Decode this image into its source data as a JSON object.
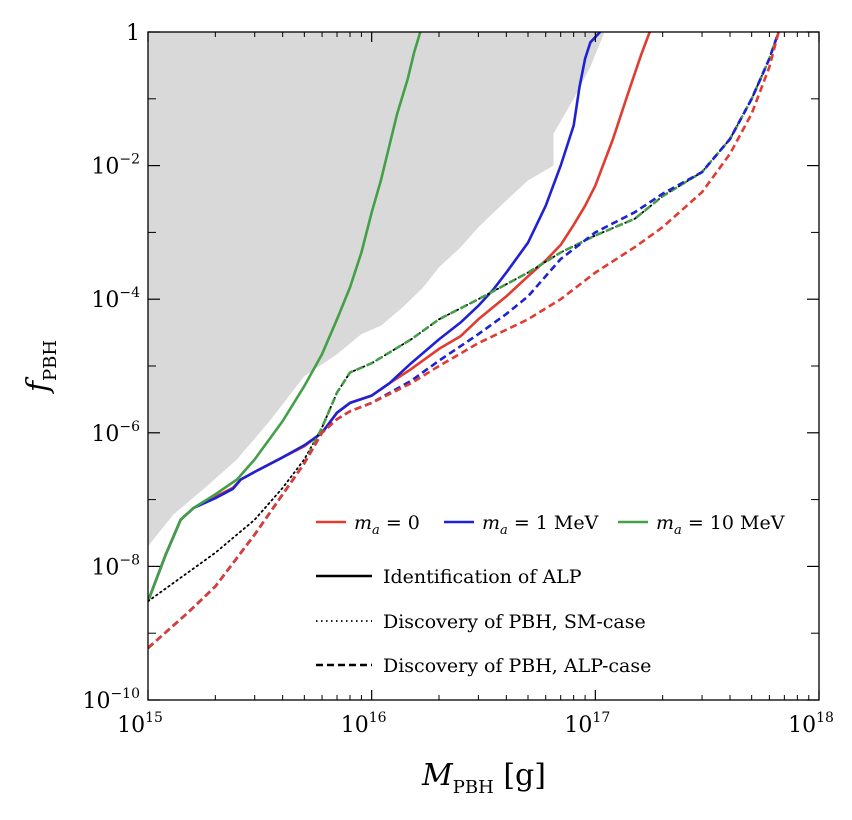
{
  "chart_data": {
    "type": "line",
    "xlabel": {
      "main": "M",
      "sub": "PBH",
      "unit": " [g]"
    },
    "ylabel": {
      "main": "f",
      "sub": "PBH"
    },
    "x_scale": "log",
    "y_scale": "log",
    "xlim": [
      1000000000000000.0,
      1e+18
    ],
    "ylim": [
      1e-10,
      1
    ],
    "x_ticks": [
      {
        "base": "10",
        "exp": "15",
        "value": 1000000000000000.0
      },
      {
        "base": "10",
        "exp": "16",
        "value": 1e+16
      },
      {
        "base": "10",
        "exp": "17",
        "value": 1e+17
      },
      {
        "base": "10",
        "exp": "18",
        "value": 1e+18
      }
    ],
    "y_ticks": [
      {
        "base": "1",
        "exp": "",
        "value": 1
      },
      {
        "base": "10",
        "exp": "−2",
        "value": 0.01
      },
      {
        "base": "10",
        "exp": "−4",
        "value": 0.0001
      },
      {
        "base": "10",
        "exp": "−6",
        "value": 1e-06
      },
      {
        "base": "10",
        "exp": "−8",
        "value": 1e-08
      },
      {
        "base": "10",
        "exp": "−10",
        "value": 1e-10
      }
    ],
    "excluded_region": {
      "color": "#d9d9d9",
      "boundary": [
        [
          1000000000000000.0,
          2e-08
        ],
        [
          1300000000000000.0,
          6e-08
        ],
        [
          1800000000000000.0,
          1.5e-07
        ],
        [
          2500000000000000.0,
          4e-07
        ],
        [
          3500000000000000.0,
          1.5e-06
        ],
        [
          5000000000000000.0,
          7e-06
        ],
        [
          7000000000000000.0,
          1.5e-05
        ],
        [
          9000000000000000.0,
          3e-05
        ],
        [
          1.1e+16,
          4e-05
        ],
        [
          1.4e+16,
          8e-05
        ],
        [
          1.7e+16,
          0.00015
        ],
        [
          2e+16,
          0.0003
        ],
        [
          2.5e+16,
          0.0006
        ],
        [
          3e+16,
          0.0012
        ],
        [
          4e+16,
          0.003
        ],
        [
          5e+16,
          0.006
        ],
        [
          6.5e+16,
          0.01
        ],
        [
          6.5e+16,
          0.03
        ],
        [
          8e+16,
          0.1
        ],
        [
          9.5e+16,
          0.3
        ],
        [
          1.1e+17,
          1
        ]
      ]
    },
    "series": [
      {
        "color": "#e03c31",
        "style": "solid",
        "points": [
          [
            1000000000000000.0,
            3e-09
          ],
          [
            1200000000000000.0,
            1.5e-08
          ],
          [
            1400000000000000.0,
            5e-08
          ],
          [
            1600000000000000.0,
            7.5e-08
          ],
          [
            2000000000000000.0,
            1.1e-07
          ],
          [
            2400000000000000.0,
            1.5e-07
          ],
          [
            2600000000000000.0,
            2e-07
          ],
          [
            3000000000000000.0,
            2.6e-07
          ],
          [
            4000000000000000.0,
            4.3e-07
          ],
          [
            5000000000000000.0,
            6.3e-07
          ],
          [
            6000000000000000.0,
            1e-06
          ],
          [
            7000000000000000.0,
            2e-06
          ],
          [
            8000000000000000.0,
            2.8e-06
          ],
          [
            1e+16,
            3.6e-06
          ],
          [
            1.2e+16,
            5.5e-06
          ],
          [
            1.5e+16,
            9e-06
          ],
          [
            2e+16,
            1.8e-05
          ],
          [
            2.5e+16,
            2.8e-05
          ],
          [
            3e+16,
            5e-05
          ],
          [
            4e+16,
            0.00011
          ],
          [
            5e+16,
            0.00022
          ],
          [
            6e+16,
            0.00038
          ],
          [
            7e+16,
            0.00065
          ],
          [
            8e+16,
            0.0013
          ],
          [
            9e+16,
            0.0025
          ],
          [
            1e+17,
            0.005
          ],
          [
            1.2e+17,
            0.025
          ],
          [
            1.4e+17,
            0.12
          ],
          [
            1.6e+17,
            0.45
          ],
          [
            1.75e+17,
            1
          ]
        ]
      },
      {
        "color": "#1f22d4",
        "style": "solid",
        "points": [
          [
            1000000000000000.0,
            3e-09
          ],
          [
            1200000000000000.0,
            1.5e-08
          ],
          [
            1400000000000000.0,
            5e-08
          ],
          [
            1600000000000000.0,
            7.5e-08
          ],
          [
            2000000000000000.0,
            1.05e-07
          ],
          [
            2400000000000000.0,
            1.45e-07
          ],
          [
            2600000000000000.0,
            2e-07
          ],
          [
            3000000000000000.0,
            2.6e-07
          ],
          [
            4000000000000000.0,
            4.3e-07
          ],
          [
            5000000000000000.0,
            6.5e-07
          ],
          [
            6000000000000000.0,
            1e-06
          ],
          [
            7000000000000000.0,
            2e-06
          ],
          [
            8000000000000000.0,
            2.8e-06
          ],
          [
            1e+16,
            3.6e-06
          ],
          [
            1.2e+16,
            5.5e-06
          ],
          [
            1.5e+16,
            1.1e-05
          ],
          [
            2e+16,
            2.5e-05
          ],
          [
            2.5e+16,
            4.5e-05
          ],
          [
            3e+16,
            8e-05
          ],
          [
            3.5e+16,
            0.00014
          ],
          [
            4e+16,
            0.00025
          ],
          [
            5e+16,
            0.0007
          ],
          [
            6e+16,
            0.0025
          ],
          [
            7e+16,
            0.01
          ],
          [
            8e+16,
            0.04
          ],
          [
            8.5e+16,
            0.15
          ],
          [
            9e+16,
            0.4
          ],
          [
            9.5e+16,
            0.7
          ],
          [
            1.05e+17,
            1
          ]
        ]
      },
      {
        "color": "#43a047",
        "style": "solid",
        "points": [
          [
            1000000000000000.0,
            3e-09
          ],
          [
            1200000000000000.0,
            1.5e-08
          ],
          [
            1400000000000000.0,
            5e-08
          ],
          [
            1600000000000000.0,
            7.5e-08
          ],
          [
            2000000000000000.0,
            1.2e-07
          ],
          [
            2500000000000000.0,
            2e-07
          ],
          [
            3000000000000000.0,
            4e-07
          ],
          [
            4000000000000000.0,
            1.5e-06
          ],
          [
            5000000000000000.0,
            5e-06
          ],
          [
            6000000000000000.0,
            1.5e-05
          ],
          [
            7000000000000000.0,
            5e-05
          ],
          [
            8000000000000000.0,
            0.00015
          ],
          [
            9000000000000000.0,
            0.0005
          ],
          [
            1e+16,
            0.002
          ],
          [
            1.1e+16,
            0.006
          ],
          [
            1.2e+16,
            0.02
          ],
          [
            1.3e+16,
            0.06
          ],
          [
            1.45e+16,
            0.2
          ],
          [
            1.55e+16,
            0.5
          ],
          [
            1.65e+16,
            1
          ]
        ]
      },
      {
        "color": "#000000",
        "style": "dotted",
        "points": [
          [
            1000000000000000.0,
            3e-09
          ],
          [
            1500000000000000.0,
            8e-09
          ],
          [
            2000000000000000.0,
            1.6e-08
          ],
          [
            3000000000000000.0,
            5e-08
          ],
          [
            4000000000000000.0,
            1.5e-07
          ],
          [
            5000000000000000.0,
            4e-07
          ],
          [
            6000000000000000.0,
            1.2e-06
          ],
          [
            7000000000000000.0,
            4e-06
          ],
          [
            8000000000000000.0,
            8e-06
          ],
          [
            1e+16,
            1.1e-05
          ],
          [
            1.5e+16,
            2.5e-05
          ],
          [
            2e+16,
            5e-05
          ],
          [
            3e+16,
            0.0001
          ],
          [
            5e+16,
            0.00025
          ],
          [
            7e+16,
            0.0005
          ],
          [
            1e+17,
            0.0009
          ],
          [
            1.5e+17,
            0.0016
          ],
          [
            2e+17,
            0.0035
          ],
          [
            3e+17,
            0.008
          ],
          [
            4e+17,
            0.025
          ],
          [
            5e+17,
            0.1
          ],
          [
            6e+17,
            0.4
          ],
          [
            6.6e+17,
            1
          ]
        ]
      },
      {
        "color": "#43a047",
        "style": "dashed",
        "points": [
          [
            1000000000000000.0,
            6e-10
          ],
          [
            1500000000000000.0,
            2e-09
          ],
          [
            2000000000000000.0,
            5e-09
          ],
          [
            3000000000000000.0,
            3e-08
          ],
          [
            4000000000000000.0,
            1.2e-07
          ],
          [
            5000000000000000.0,
            3.5e-07
          ],
          [
            6000000000000000.0,
            1.2e-06
          ],
          [
            7000000000000000.0,
            4e-06
          ],
          [
            8000000000000000.0,
            8e-06
          ],
          [
            1e+16,
            1.1e-05
          ],
          [
            1.5e+16,
            2.5e-05
          ],
          [
            2e+16,
            5e-05
          ],
          [
            3e+16,
            0.0001
          ],
          [
            5e+16,
            0.00025
          ],
          [
            7e+16,
            0.0005
          ],
          [
            1e+17,
            0.0009
          ],
          [
            1.5e+17,
            0.0016
          ],
          [
            2e+17,
            0.0035
          ],
          [
            3e+17,
            0.008
          ],
          [
            4e+17,
            0.025
          ],
          [
            5e+17,
            0.1
          ],
          [
            6e+17,
            0.4
          ],
          [
            6.6e+17,
            1
          ]
        ]
      },
      {
        "color": "#1f22d4",
        "style": "dashed",
        "points": [
          [
            1000000000000000.0,
            6e-10
          ],
          [
            1500000000000000.0,
            2e-09
          ],
          [
            2000000000000000.0,
            5e-09
          ],
          [
            3000000000000000.0,
            3e-08
          ],
          [
            4000000000000000.0,
            1.2e-07
          ],
          [
            5000000000000000.0,
            3.5e-07
          ],
          [
            6000000000000000.0,
            1e-06
          ],
          [
            7000000000000000.0,
            1.6e-06
          ],
          [
            8000000000000000.0,
            2.1e-06
          ],
          [
            1e+16,
            2.8e-06
          ],
          [
            1.5e+16,
            6e-06
          ],
          [
            2e+16,
            1.2e-05
          ],
          [
            3e+16,
            3e-05
          ],
          [
            4e+16,
            6e-05
          ],
          [
            5e+16,
            0.00011
          ],
          [
            7e+16,
            0.0004
          ],
          [
            1e+17,
            0.001
          ],
          [
            1.5e+17,
            0.002
          ],
          [
            2e+17,
            0.0038
          ],
          [
            3e+17,
            0.008
          ],
          [
            4e+17,
            0.025
          ],
          [
            5e+17,
            0.1
          ],
          [
            6e+17,
            0.4
          ],
          [
            6.6e+17,
            1
          ]
        ]
      },
      {
        "color": "#e03c31",
        "style": "dashed",
        "points": [
          [
            1000000000000000.0,
            6e-10
          ],
          [
            1500000000000000.0,
            2e-09
          ],
          [
            2000000000000000.0,
            5e-09
          ],
          [
            3000000000000000.0,
            3e-08
          ],
          [
            4000000000000000.0,
            1.2e-07
          ],
          [
            5000000000000000.0,
            3.5e-07
          ],
          [
            6000000000000000.0,
            1e-06
          ],
          [
            7000000000000000.0,
            1.6e-06
          ],
          [
            8000000000000000.0,
            2.1e-06
          ],
          [
            1e+16,
            2.8e-06
          ],
          [
            1.5e+16,
            5.5e-06
          ],
          [
            2e+16,
            1e-05
          ],
          [
            3e+16,
            2.2e-05
          ],
          [
            5e+16,
            5e-05
          ],
          [
            7e+16,
            0.0001
          ],
          [
            1e+17,
            0.00025
          ],
          [
            1.5e+17,
            0.0006
          ],
          [
            2e+17,
            0.0012
          ],
          [
            3e+17,
            0.004
          ],
          [
            4e+17,
            0.015
          ],
          [
            5e+17,
            0.06
          ],
          [
            6e+17,
            0.3
          ],
          [
            6.6e+17,
            1
          ]
        ]
      }
    ],
    "legend": {
      "placement": "lower-right",
      "colors": [
        {
          "color": "#e03c31",
          "math": "m",
          "sub": "a",
          "rest": " = 0"
        },
        {
          "color": "#1f22d4",
          "math": "m",
          "sub": "a",
          "rest": " = 1 MeV"
        },
        {
          "color": "#43a047",
          "math": "m",
          "sub": "a",
          "rest": " = 10 MeV"
        }
      ],
      "styles": [
        {
          "style": "solid",
          "label": "Identification of ALP"
        },
        {
          "style": "dotted",
          "label": "Discovery of PBH, SM-case"
        },
        {
          "style": "dashed",
          "label": "Discovery of PBH, ALP-case"
        }
      ]
    }
  }
}
